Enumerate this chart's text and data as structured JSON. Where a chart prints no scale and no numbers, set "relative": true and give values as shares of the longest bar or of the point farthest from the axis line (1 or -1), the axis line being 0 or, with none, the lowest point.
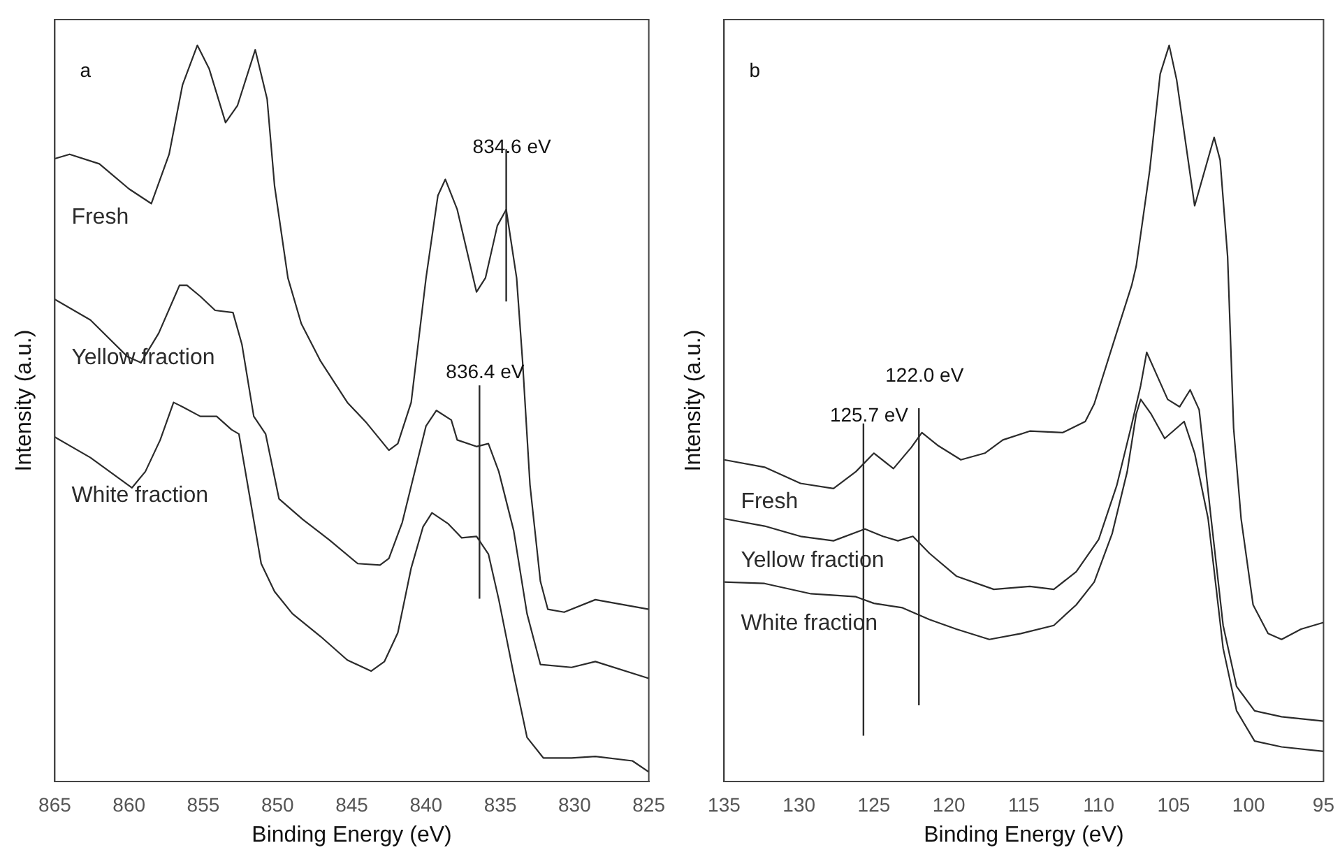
{
  "chart_data": [
    {
      "type": "line",
      "title": "a",
      "xlabel": "Binding Energy (eV)",
      "ylabel": "Intensity (a.u.)",
      "relative": true,
      "xlim": [
        865,
        825
      ],
      "xticks": [
        865,
        860,
        855,
        850,
        845,
        840,
        835,
        830,
        825
      ],
      "tick_labels": "x",
      "grid": false,
      "legend": false,
      "marker": "none",
      "series": [
        {
          "name": "Fresh",
          "color": "#2b2b2b",
          "x": [
            865,
            864,
            862,
            860,
            858.5,
            857.3,
            856.4,
            855.4,
            854.6,
            853.5,
            852.7,
            851.5,
            850.7,
            850.2,
            849.3,
            848.4,
            847.1,
            845.3,
            844.0,
            842.5,
            841.9,
            841.0,
            840.0,
            839.2,
            838.7,
            837.9,
            836.6,
            836.0,
            835.2,
            834.6,
            833.9,
            833.5,
            833.0,
            832.3,
            831.8,
            830.7,
            828.6,
            825
          ],
          "values": [
            0.846,
            0.852,
            0.839,
            0.805,
            0.785,
            0.852,
            0.946,
            1.0,
            0.968,
            0.895,
            0.918,
            0.994,
            0.927,
            0.809,
            0.684,
            0.622,
            0.571,
            0.515,
            0.487,
            0.45,
            0.459,
            0.515,
            0.684,
            0.796,
            0.818,
            0.777,
            0.665,
            0.684,
            0.755,
            0.777,
            0.684,
            0.571,
            0.403,
            0.272,
            0.234,
            0.23,
            0.247,
            0.234
          ]
        },
        {
          "name": "Yellow fraction",
          "color": "#2b2b2b",
          "x": [
            865,
            862.6,
            860.1,
            859.2,
            858.0,
            856.6,
            856.1,
            855.2,
            854.2,
            853.0,
            852.4,
            851.6,
            850.8,
            849.9,
            848.3,
            846.5,
            844.6,
            843.1,
            842.5,
            841.6,
            840.6,
            840.0,
            839.3,
            838.3,
            837.9,
            836.6,
            835.8,
            835.1,
            834.1,
            833.2,
            832.3,
            830.2,
            828.6,
            825
          ],
          "values": [
            0.655,
            0.627,
            0.577,
            0.569,
            0.609,
            0.674,
            0.674,
            0.659,
            0.64,
            0.637,
            0.594,
            0.496,
            0.472,
            0.384,
            0.356,
            0.328,
            0.296,
            0.294,
            0.303,
            0.352,
            0.434,
            0.483,
            0.504,
            0.491,
            0.464,
            0.455,
            0.459,
            0.421,
            0.341,
            0.228,
            0.159,
            0.155,
            0.163,
            0.14
          ]
        },
        {
          "name": "White fraction",
          "color": "#2b2b2b",
          "x": [
            865,
            862.6,
            859.8,
            858.9,
            857.9,
            857.0,
            856.4,
            855.2,
            854.1,
            853.1,
            852.6,
            851.9,
            851.1,
            850.2,
            849.0,
            847.1,
            845.3,
            843.7,
            842.8,
            841.9,
            841.0,
            840.2,
            839.6,
            838.5,
            837.6,
            836.6,
            835.8,
            835.1,
            834.1,
            833.2,
            832.1,
            830.2,
            828.6,
            826.1,
            825
          ],
          "values": [
            0.468,
            0.44,
            0.399,
            0.421,
            0.464,
            0.515,
            0.509,
            0.496,
            0.496,
            0.478,
            0.472,
            0.39,
            0.296,
            0.258,
            0.228,
            0.197,
            0.165,
            0.15,
            0.163,
            0.202,
            0.29,
            0.346,
            0.365,
            0.35,
            0.331,
            0.333,
            0.309,
            0.247,
            0.146,
            0.06,
            0.032,
            0.032,
            0.034,
            0.028,
            0.013
          ]
        }
      ],
      "ref_lines": [
        {
          "axis": "x",
          "value": 834.6,
          "label": "834.6 eV",
          "color": "#2b2b2b"
        },
        {
          "axis": "x",
          "value": 836.4,
          "label": "836.4 eV",
          "color": "#2b2b2b"
        }
      ]
    },
    {
      "type": "line",
      "title": "b",
      "xlabel": "Binding Energy (eV)",
      "ylabel": "Intensity (a.u.)",
      "relative": true,
      "xlim": [
        135,
        95
      ],
      "xticks": [
        135,
        130,
        125,
        120,
        115,
        110,
        105,
        100,
        95
      ],
      "tick_labels": "x",
      "grid": false,
      "legend": false,
      "marker": "none",
      "series": [
        {
          "name": "Fresh",
          "color": "#2b2b2b",
          "x": [
            135,
            132.3,
            129.9,
            127.7,
            126.2,
            125.0,
            123.7,
            122.5,
            121.8,
            120.7,
            119.2,
            117.6,
            116.4,
            114.6,
            112.4,
            110.9,
            110.3,
            108.8,
            107.8,
            107.5,
            106.6,
            105.9,
            105.3,
            104.8,
            103.6,
            102.3,
            101.9,
            101.4,
            101.0,
            100.5,
            99.7,
            98.7,
            97.8,
            96.5,
            95
          ],
          "values": [
            0.437,
            0.427,
            0.405,
            0.398,
            0.421,
            0.446,
            0.425,
            0.454,
            0.474,
            0.456,
            0.437,
            0.446,
            0.464,
            0.476,
            0.474,
            0.489,
            0.513,
            0.61,
            0.674,
            0.7,
            0.83,
            0.961,
            1.0,
            0.953,
            0.782,
            0.875,
            0.844,
            0.713,
            0.48,
            0.357,
            0.24,
            0.201,
            0.193,
            0.207,
            0.216
          ]
        },
        {
          "name": "Yellow fraction",
          "color": "#2b2b2b",
          "x": [
            135,
            132.3,
            129.9,
            127.7,
            125.6,
            124.4,
            123.4,
            122.4,
            121.3,
            119.5,
            117.0,
            114.6,
            113.0,
            111.5,
            110.0,
            108.8,
            107.8,
            107.2,
            106.8,
            105.4,
            104.6,
            103.9,
            103.3,
            102.5,
            101.7,
            100.8,
            99.6,
            97.8,
            95
          ],
          "values": [
            0.357,
            0.347,
            0.333,
            0.327,
            0.343,
            0.333,
            0.327,
            0.333,
            0.31,
            0.279,
            0.261,
            0.265,
            0.261,
            0.285,
            0.329,
            0.402,
            0.485,
            0.538,
            0.583,
            0.519,
            0.509,
            0.532,
            0.505,
            0.357,
            0.212,
            0.129,
            0.096,
            0.088,
            0.082
          ]
        },
        {
          "name": "White fraction",
          "color": "#2b2b2b",
          "x": [
            135,
            132.3,
            129.2,
            126.2,
            125.0,
            123.1,
            121.3,
            119.5,
            117.3,
            115.2,
            113.0,
            111.5,
            110.3,
            109.1,
            108.1,
            107.5,
            107.2,
            106.5,
            105.6,
            104.3,
            103.6,
            102.7,
            101.7,
            100.8,
            99.6,
            97.8,
            95
          ],
          "values": [
            0.271,
            0.269,
            0.255,
            0.251,
            0.242,
            0.236,
            0.22,
            0.207,
            0.193,
            0.201,
            0.212,
            0.24,
            0.271,
            0.337,
            0.421,
            0.499,
            0.519,
            0.499,
            0.466,
            0.489,
            0.446,
            0.357,
            0.181,
            0.096,
            0.055,
            0.047,
            0.041
          ]
        }
      ],
      "ref_lines": [
        {
          "axis": "x",
          "value": 125.7,
          "label": "125.7 eV",
          "color": "#2b2b2b"
        },
        {
          "axis": "x",
          "value": 122.0,
          "label": "122.0 eV",
          "color": "#2b2b2b"
        }
      ]
    }
  ]
}
